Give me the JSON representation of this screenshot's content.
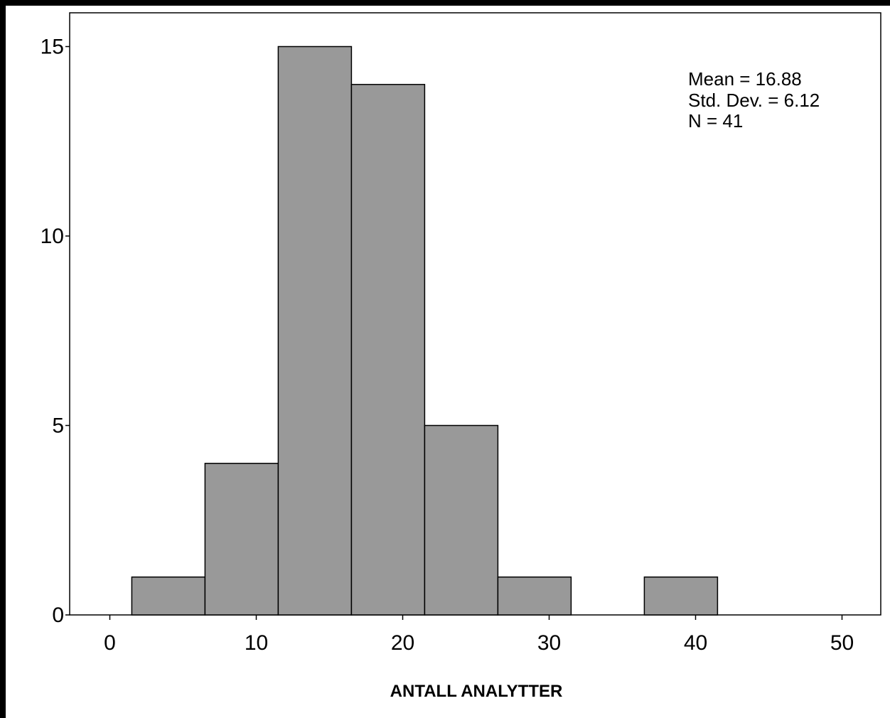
{
  "chart_data": {
    "type": "bar",
    "subtype": "histogram",
    "bins": [
      {
        "x0": 1.5,
        "x1": 6.5,
        "count": 1
      },
      {
        "x0": 6.5,
        "x1": 11.5,
        "count": 4
      },
      {
        "x0": 11.5,
        "x1": 16.5,
        "count": 15
      },
      {
        "x0": 16.5,
        "x1": 21.5,
        "count": 14
      },
      {
        "x0": 21.5,
        "x1": 26.5,
        "count": 5
      },
      {
        "x0": 26.5,
        "x1": 31.5,
        "count": 1
      },
      {
        "x0": 31.5,
        "x1": 36.5,
        "count": 0
      },
      {
        "x0": 36.5,
        "x1": 41.5,
        "count": 1
      }
    ],
    "xlabel": "ANTALL ANALYTTER",
    "ylabel": "",
    "xlim": [
      -3,
      52
    ],
    "ylim": [
      0,
      16.5
    ],
    "xticks": [
      0,
      10,
      20,
      30,
      40,
      50
    ],
    "yticks": [
      0,
      5,
      10,
      15
    ],
    "xtick_labels": [
      "0",
      "10",
      "20",
      "30",
      "40",
      "50"
    ],
    "ytick_labels": [
      "0",
      "5",
      "10",
      "15"
    ],
    "grid": false,
    "bar_color": "#999999",
    "stats": {
      "mean_text": "Mean = 16.88",
      "std_text": "Std. Dev. = 6.12",
      "n_text": "N = 41"
    }
  }
}
